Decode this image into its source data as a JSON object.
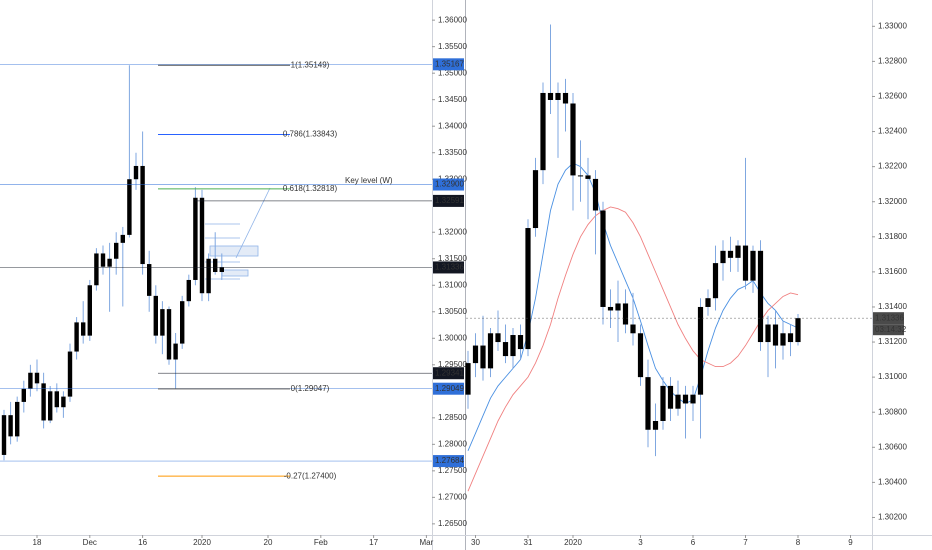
{
  "chart_data": [
    {
      "type": "candlestick",
      "candle_color": "#000000",
      "wick_color": "#7fa7e0",
      "ylim": [
        1.2629,
        1.3638
      ],
      "yticks": [
        {
          "value": 1.36,
          "label": "1.36000"
        },
        {
          "value": 1.355,
          "label": "1.35500"
        },
        {
          "value": 1.35,
          "label": "1.35000"
        },
        {
          "value": 1.345,
          "label": "1.34500"
        },
        {
          "value": 1.34,
          "label": "1.34000"
        },
        {
          "value": 1.335,
          "label": "1.33500"
        },
        {
          "value": 1.33,
          "label": "1.33000"
        },
        {
          "value": 1.32,
          "label": "1.32000"
        },
        {
          "value": 1.315,
          "label": "1.31500"
        },
        {
          "value": 1.31,
          "label": "1.31000"
        },
        {
          "value": 1.305,
          "label": "1.30500"
        },
        {
          "value": 1.3,
          "label": "1.30000"
        },
        {
          "value": 1.295,
          "label": "1.29500"
        },
        {
          "value": 1.285,
          "label": "1.28500"
        },
        {
          "value": 1.28,
          "label": "1.28000"
        },
        {
          "value": 1.275,
          "label": "1.27500"
        },
        {
          "value": 1.27,
          "label": "1.27000"
        },
        {
          "value": 1.265,
          "label": "1.26500"
        }
      ],
      "xticks": [
        {
          "value": 5,
          "label": "18"
        },
        {
          "value": 13,
          "label": "Dec"
        },
        {
          "value": 21,
          "label": "16"
        },
        {
          "value": 30,
          "label": "2020"
        },
        {
          "value": 40,
          "label": "20"
        },
        {
          "value": 48,
          "label": "Feb"
        },
        {
          "value": 56,
          "label": "17"
        },
        {
          "value": 64,
          "label": "Mar"
        }
      ],
      "ohlc": [
        [
          1.278,
          1.2865,
          1.277,
          1.2855
        ],
        [
          1.2855,
          1.288,
          1.28,
          1.2815
        ],
        [
          1.2815,
          1.289,
          1.2805,
          1.288
        ],
        [
          1.288,
          1.292,
          1.286,
          1.2905
        ],
        [
          1.2905,
          1.295,
          1.289,
          1.2935
        ],
        [
          1.2935,
          1.296,
          1.29,
          1.2915
        ],
        [
          1.2915,
          1.2935,
          1.283,
          1.2845
        ],
        [
          1.2845,
          1.291,
          1.284,
          1.29
        ],
        [
          1.29,
          1.2915,
          1.286,
          1.287
        ],
        [
          1.287,
          1.29,
          1.285,
          1.289
        ],
        [
          1.289,
          1.299,
          1.288,
          1.2975
        ],
        [
          1.2975,
          1.304,
          1.296,
          1.303
        ],
        [
          1.303,
          1.307,
          1.299,
          1.3005
        ],
        [
          1.3005,
          1.311,
          1.2995,
          1.31
        ],
        [
          1.31,
          1.317,
          1.309,
          1.316
        ],
        [
          1.316,
          1.3175,
          1.312,
          1.3135
        ],
        [
          1.3135,
          1.318,
          1.305,
          1.315
        ],
        [
          1.315,
          1.32,
          1.312,
          1.318
        ],
        [
          1.318,
          1.321,
          1.306,
          1.3195
        ],
        [
          1.3195,
          1.3515,
          1.319,
          1.33
        ],
        [
          1.33,
          1.335,
          1.328,
          1.3325
        ],
        [
          1.3325,
          1.339,
          1.312,
          1.314
        ],
        [
          1.314,
          1.3165,
          1.305,
          1.308
        ],
        [
          1.308,
          1.31,
          1.299,
          1.3005
        ],
        [
          1.3005,
          1.307,
          1.297,
          1.3055
        ],
        [
          1.3055,
          1.306,
          1.295,
          1.296
        ],
        [
          1.296,
          1.301,
          1.2905,
          1.299
        ],
        [
          1.299,
          1.308,
          1.298,
          1.307
        ],
        [
          1.307,
          1.312,
          1.306,
          1.311
        ],
        [
          1.311,
          1.3285,
          1.31,
          1.3265
        ],
        [
          1.3265,
          1.328,
          1.307,
          1.3085
        ],
        [
          1.3085,
          1.316,
          1.307,
          1.315
        ],
        [
          1.315,
          1.32,
          1.312,
          1.3125
        ],
        [
          1.3125,
          1.316,
          1.311,
          1.3134
        ]
      ],
      "levels": [
        {
          "value": 1.35167,
          "label": "1.35167",
          "color": "#2f6fd8"
        },
        {
          "value": 1.329,
          "label": "1.32900",
          "color": "#2f6fd8"
        },
        {
          "value": 1.32591,
          "label": "1.32591",
          "color": "#131722"
        },
        {
          "value": 1.31336,
          "label": "1.31336",
          "color": "#131722"
        },
        {
          "value": 1.29341,
          "label": "1.29341",
          "color": "#131722"
        },
        {
          "value": 1.29049,
          "label": "1.29049",
          "color": "#2f6fd8"
        },
        {
          "value": 1.27684,
          "label": "1.27684",
          "color": "#2f6fd8"
        }
      ],
      "fib": [
        {
          "value": 1.35149,
          "label": "1(1.35149)",
          "color": "#555555"
        },
        {
          "value": 1.33843,
          "label": "0.786(1.33843)",
          "color": "#2962ff"
        },
        {
          "value": 1.32818,
          "label": "0.618(1.32818)",
          "color": "#4caf50"
        },
        {
          "value": 1.29047,
          "label": "0(1.29047)",
          "color": "#555555"
        },
        {
          "value": 1.274,
          "label": "-0.27(1.27400)",
          "color": "#ff9800"
        }
      ],
      "annotation": "Key level (W)"
    },
    {
      "type": "candlestick",
      "candle_color": "#000000",
      "wick_color": "#7fa7e0",
      "ylim": [
        1.301,
        1.3315
      ],
      "yticks": [
        {
          "value": 1.33,
          "label": "1.33000"
        },
        {
          "value": 1.328,
          "label": "1.32800"
        },
        {
          "value": 1.326,
          "label": "1.32600"
        },
        {
          "value": 1.324,
          "label": "1.32400"
        },
        {
          "value": 1.322,
          "label": "1.32200"
        },
        {
          "value": 1.32,
          "label": "1.32000"
        },
        {
          "value": 1.318,
          "label": "1.31800"
        },
        {
          "value": 1.316,
          "label": "1.31600"
        },
        {
          "value": 1.314,
          "label": "1.31400"
        },
        {
          "value": 1.312,
          "label": "1.31200"
        },
        {
          "value": 1.31,
          "label": "1.31000"
        },
        {
          "value": 1.308,
          "label": "1.30800"
        },
        {
          "value": 1.306,
          "label": "1.30600"
        },
        {
          "value": 1.304,
          "label": "1.30400"
        },
        {
          "value": 1.302,
          "label": "1.30200"
        }
      ],
      "xticks": [
        {
          "value": 1,
          "label": "30"
        },
        {
          "value": 8,
          "label": "31"
        },
        {
          "value": 14,
          "label": "2020"
        },
        {
          "value": 23,
          "label": "3"
        },
        {
          "value": 30,
          "label": "6"
        },
        {
          "value": 37,
          "label": "7"
        },
        {
          "value": 44,
          "label": "8"
        },
        {
          "value": 51,
          "label": "9"
        }
      ],
      "ohlc": [
        [
          1.309,
          1.3115,
          1.3082,
          1.3108
        ],
        [
          1.3108,
          1.3125,
          1.31,
          1.3118
        ],
        [
          1.3118,
          1.3135,
          1.3098,
          1.3105
        ],
        [
          1.3105,
          1.3128,
          1.31,
          1.3125
        ],
        [
          1.3125,
          1.3138,
          1.3115,
          1.312
        ],
        [
          1.312,
          1.313,
          1.3108,
          1.3112
        ],
        [
          1.3112,
          1.3128,
          1.3105,
          1.3124
        ],
        [
          1.3124,
          1.313,
          1.311,
          1.3116
        ],
        [
          1.3116,
          1.319,
          1.3112,
          1.3185
        ],
        [
          1.3185,
          1.3225,
          1.318,
          1.3218
        ],
        [
          1.3218,
          1.3268,
          1.321,
          1.3262
        ],
        [
          1.3262,
          1.3301,
          1.325,
          1.3258
        ],
        [
          1.3258,
          1.3268,
          1.3225,
          1.3262
        ],
        [
          1.3262,
          1.327,
          1.324,
          1.3256
        ],
        [
          1.3256,
          1.3262,
          1.3195,
          1.3215
        ],
        [
          1.3215,
          1.3235,
          1.32,
          1.3215
        ],
        [
          1.3215,
          1.3225,
          1.319,
          1.3213
        ],
        [
          1.3213,
          1.3218,
          1.317,
          1.3195
        ],
        [
          1.3195,
          1.32,
          1.313,
          1.314
        ],
        [
          1.314,
          1.315,
          1.3128,
          1.3138
        ],
        [
          1.3138,
          1.3155,
          1.312,
          1.3142
        ],
        [
          1.3142,
          1.315,
          1.3125,
          1.313
        ],
        [
          1.313,
          1.3148,
          1.3118,
          1.3125
        ],
        [
          1.3125,
          1.313,
          1.3095,
          1.31
        ],
        [
          1.31,
          1.311,
          1.306,
          1.307
        ],
        [
          1.307,
          1.3085,
          1.3055,
          1.3075
        ],
        [
          1.3075,
          1.31,
          1.307,
          1.3095
        ],
        [
          1.3095,
          1.31,
          1.3075,
          1.3082
        ],
        [
          1.3082,
          1.3098,
          1.3078,
          1.309
        ],
        [
          1.309,
          1.3095,
          1.3065,
          1.3085
        ],
        [
          1.3085,
          1.3095,
          1.3075,
          1.309
        ],
        [
          1.309,
          1.3145,
          1.3065,
          1.314
        ],
        [
          1.314,
          1.315,
          1.3135,
          1.3145
        ],
        [
          1.3145,
          1.3175,
          1.3138,
          1.3165
        ],
        [
          1.3165,
          1.3178,
          1.3155,
          1.3172
        ],
        [
          1.3172,
          1.318,
          1.316,
          1.3168
        ],
        [
          1.3168,
          1.3178,
          1.316,
          1.3175
        ],
        [
          1.3175,
          1.3225,
          1.315,
          1.3155
        ],
        [
          1.3155,
          1.3175,
          1.3148,
          1.3172
        ],
        [
          1.3172,
          1.3178,
          1.3115,
          1.312
        ],
        [
          1.312,
          1.3135,
          1.31,
          1.313
        ],
        [
          1.313,
          1.3138,
          1.3105,
          1.3118
        ],
        [
          1.3118,
          1.3132,
          1.311,
          1.3125
        ],
        [
          1.3125,
          1.313,
          1.3112,
          1.312
        ],
        [
          1.312,
          1.3136,
          1.3118,
          1.31336
        ]
      ],
      "series": [
        {
          "color": "#4a90e2",
          "values": [
            1.3058,
            1.3068,
            1.3078,
            1.3088,
            1.3095,
            1.31,
            1.3105,
            1.311,
            1.3125,
            1.3145,
            1.317,
            1.3195,
            1.321,
            1.3218,
            1.3222,
            1.322,
            1.3215,
            1.3205,
            1.3188,
            1.3175,
            1.3165,
            1.3155,
            1.3145,
            1.3132,
            1.3118,
            1.3105,
            1.3098,
            1.3092,
            1.3088,
            1.3085,
            1.3087,
            1.31,
            1.3115,
            1.3128,
            1.3138,
            1.3145,
            1.315,
            1.3152,
            1.3155,
            1.3148,
            1.3142,
            1.3138,
            1.3132,
            1.313,
            1.3128
          ]
        },
        {
          "color": "#f08080",
          "values": [
            1.3035,
            1.3045,
            1.3055,
            1.3065,
            1.3075,
            1.3083,
            1.309,
            1.3095,
            1.31,
            1.3108,
            1.3118,
            1.313,
            1.3145,
            1.3158,
            1.317,
            1.318,
            1.3187,
            1.3192,
            1.3195,
            1.3197,
            1.3196,
            1.3194,
            1.3188,
            1.318,
            1.317,
            1.316,
            1.315,
            1.314,
            1.313,
            1.3122,
            1.3115,
            1.311,
            1.3108,
            1.3106,
            1.3106,
            1.3108,
            1.3112,
            1.3118,
            1.3125,
            1.3132,
            1.3138,
            1.3142,
            1.3146,
            1.3148,
            1.3147
          ]
        }
      ],
      "levels": [
        {
          "value": 1.31336,
          "label": "1.31336",
          "color": "#4a4a4a"
        }
      ],
      "countdown": "03:14:32"
    }
  ]
}
